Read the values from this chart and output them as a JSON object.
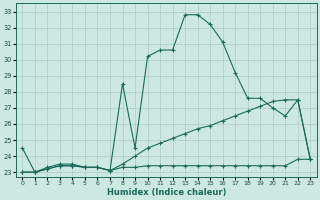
{
  "xlabel": "Humidex (Indice chaleur)",
  "bg_color": "#cce8e0",
  "grid_color": "#aaccC4",
  "line_color": "#1a6b5a",
  "xlim": [
    -0.5,
    23.5
  ],
  "ylim": [
    22.7,
    33.5
  ],
  "yticks": [
    23,
    24,
    25,
    26,
    27,
    28,
    29,
    30,
    31,
    32,
    33
  ],
  "xticks": [
    0,
    1,
    2,
    3,
    4,
    5,
    6,
    7,
    8,
    9,
    10,
    11,
    12,
    13,
    14,
    15,
    16,
    17,
    18,
    19,
    20,
    21,
    22,
    23
  ],
  "line1_x": [
    0,
    1,
    2,
    3,
    4,
    5,
    6,
    7,
    8,
    9,
    10,
    11,
    12,
    13,
    14,
    15,
    16,
    17,
    18,
    19,
    20,
    21,
    22,
    23
  ],
  "line1_y": [
    24.5,
    23.0,
    23.3,
    23.5,
    23.5,
    23.3,
    23.3,
    23.1,
    28.5,
    24.5,
    30.2,
    30.6,
    30.6,
    32.8,
    32.8,
    32.2,
    31.1,
    29.2,
    27.6,
    27.6,
    27.0,
    26.5,
    27.5,
    23.8
  ],
  "line2_x": [
    0,
    1,
    2,
    3,
    4,
    5,
    6,
    7,
    8,
    9,
    10,
    11,
    12,
    13,
    14,
    15,
    16,
    17,
    18,
    19,
    20,
    21,
    22,
    23
  ],
  "line2_y": [
    23.0,
    23.0,
    23.2,
    23.4,
    23.4,
    23.3,
    23.3,
    23.1,
    23.5,
    24.0,
    24.5,
    24.8,
    25.1,
    25.4,
    25.7,
    25.9,
    26.2,
    26.5,
    26.8,
    27.1,
    27.4,
    27.5,
    27.5,
    23.8
  ],
  "line3_x": [
    0,
    1,
    2,
    3,
    4,
    5,
    6,
    7,
    8,
    9,
    10,
    11,
    12,
    13,
    14,
    15,
    16,
    17,
    18,
    19,
    20,
    21,
    22,
    23
  ],
  "line3_y": [
    23.0,
    23.0,
    23.2,
    23.4,
    23.4,
    23.3,
    23.3,
    23.1,
    23.3,
    23.3,
    23.4,
    23.4,
    23.4,
    23.4,
    23.4,
    23.4,
    23.4,
    23.4,
    23.4,
    23.4,
    23.4,
    23.4,
    23.8,
    23.8
  ]
}
